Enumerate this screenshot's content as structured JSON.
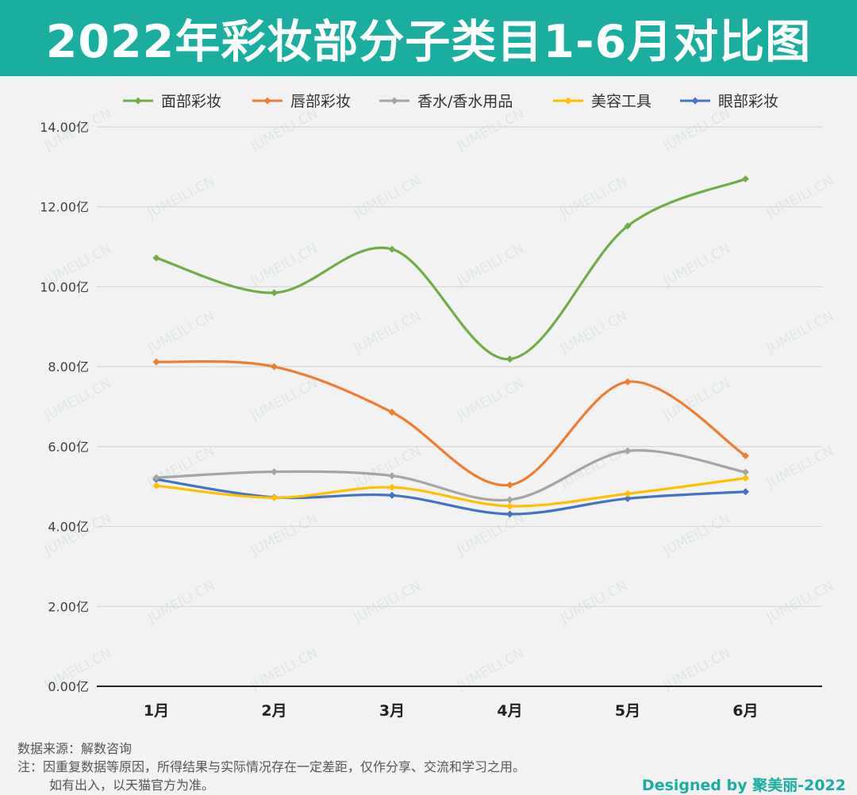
{
  "header": {
    "title": "2022年彩妆部分子类目1-6月对比图"
  },
  "chart_data": {
    "type": "line",
    "title": "2022年彩妆部分子类目1-6月对比图",
    "categories": [
      "1月",
      "2月",
      "3月",
      "4月",
      "5月",
      "6月"
    ],
    "ylim": [
      0,
      14
    ],
    "yticks": [
      "0.00亿",
      "2.00亿",
      "4.00亿",
      "6.00亿",
      "8.00亿",
      "10.00亿",
      "12.00亿",
      "14.00亿"
    ],
    "ytick_values": [
      0,
      2,
      4,
      6,
      8,
      10,
      12,
      14
    ],
    "unit": "亿",
    "legend_position": "top",
    "grid": true,
    "series": [
      {
        "name": "面部彩妆",
        "color": "#70ad47",
        "values": [
          10.72,
          9.85,
          10.94,
          8.19,
          11.52,
          12.7
        ]
      },
      {
        "name": "唇部彩妆",
        "color": "#ed7d31",
        "values": [
          8.12,
          8.0,
          6.86,
          5.04,
          7.62,
          5.77
        ]
      },
      {
        "name": "香水/香水用品",
        "color": "#a5a5a5",
        "values": [
          5.22,
          5.37,
          5.27,
          4.67,
          5.89,
          5.36
        ]
      },
      {
        "name": "美容工具",
        "color": "#ffc000",
        "values": [
          5.02,
          4.72,
          4.98,
          4.51,
          4.82,
          5.21
        ]
      },
      {
        "name": "眼部彩妆",
        "color": "#4472c4",
        "values": [
          5.18,
          4.73,
          4.78,
          4.31,
          4.7,
          4.87
        ]
      }
    ],
    "watermark": "JUMEILI.CN"
  },
  "footer": {
    "source": "数据来源：解数咨询",
    "note_line1": "注：因重复数据等原因，所得结果与实际情况存在一定差距，仅作分享、交流和学习之用。",
    "note_line2": "如有出入，以天猫官方为准。",
    "credit": "Designed by 聚美丽-2022"
  }
}
